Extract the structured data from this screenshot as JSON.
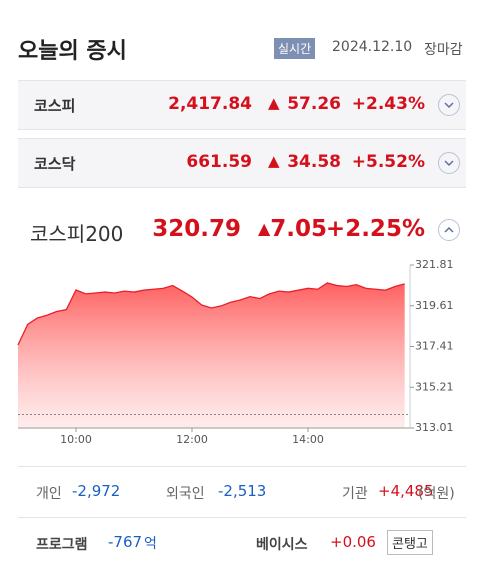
{
  "header": {
    "title": "오늘의 증시",
    "badge": "실시간",
    "date": "2024.12.10",
    "status": "장마감"
  },
  "indices": [
    {
      "name": "코스피",
      "value": "2,417.84",
      "change": "57.26",
      "rate": "+2.43%"
    },
    {
      "name": "코스닥",
      "value": "661.59",
      "change": "34.58",
      "rate": "+5.52%"
    }
  ],
  "featured": {
    "name": "코스피200",
    "value": "320.79",
    "change": "7.05",
    "rate": "+2.25%"
  },
  "chart_data": {
    "type": "area",
    "color": "#e8202a",
    "categories": [
      null,
      null,
      null,
      null,
      null,
      null,
      "10:00",
      null,
      null,
      null,
      null,
      null,
      null,
      null,
      null,
      null,
      null,
      null,
      "12:00",
      null,
      null,
      null,
      null,
      null,
      null,
      null,
      null,
      null,
      null,
      null,
      "14:00",
      null,
      null,
      null,
      null,
      null,
      null,
      null,
      null,
      null,
      null
    ],
    "values": [
      317.49,
      318.6,
      318.95,
      319.1,
      319.3,
      319.4,
      320.46,
      320.25,
      320.3,
      320.35,
      320.3,
      320.4,
      320.35,
      320.45,
      320.5,
      320.55,
      320.7,
      320.4,
      320.08,
      319.65,
      319.49,
      319.6,
      319.8,
      319.92,
      320.1,
      320.0,
      320.25,
      320.4,
      320.35,
      320.45,
      320.55,
      320.5,
      320.84,
      320.7,
      320.65,
      320.75,
      320.55,
      320.5,
      320.45,
      320.65,
      320.79
    ],
    "ylim": [
      313.01,
      321.81
    ],
    "yticks": [
      313.01,
      315.21,
      317.41,
      319.61,
      321.81
    ],
    "reference_line": 313.74
  },
  "investors": [
    {
      "label": "개인",
      "value": "-2,972"
    },
    {
      "label": "외국인",
      "value": "-2,513"
    },
    {
      "label": "기관",
      "value": "+4,485"
    }
  ],
  "investor_unit": "(억원)",
  "program": {
    "label": "프로그램",
    "value": "-767",
    "unit": "억"
  },
  "basis": {
    "label": "베이시스",
    "value": "+0.06",
    "button": "콘탱고"
  }
}
